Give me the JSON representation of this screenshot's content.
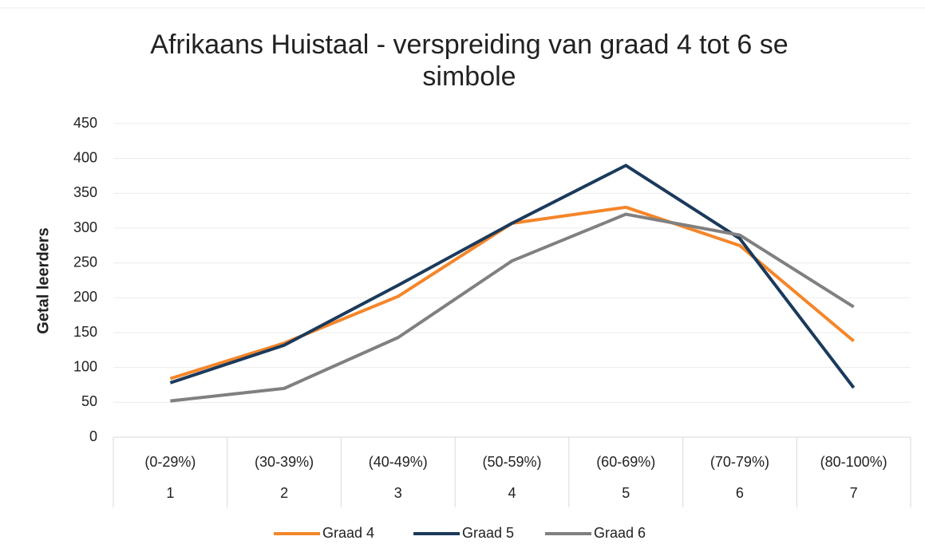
{
  "chart_data": {
    "type": "line",
    "title": "Afrikaans Huistaal - verspreiding van graad 4 tot 6 se simbole",
    "y_label": "Getal leerders",
    "categories": [
      [
        "(0-29%)",
        "1"
      ],
      [
        "(30-39%)",
        "2"
      ],
      [
        "(40-49%)",
        "3"
      ],
      [
        "(50-59%)",
        "4"
      ],
      [
        "(60-69%)",
        "5"
      ],
      [
        "(70-79%)",
        "6"
      ],
      [
        "(80-100%)",
        "7"
      ]
    ],
    "series": [
      {
        "name": "Graad 4",
        "color": "#f4862a",
        "values": [
          84,
          135,
          202,
          307,
          330,
          275,
          138
        ]
      },
      {
        "name": "Graad 5",
        "color": "#1b3a5c",
        "values": [
          78,
          132,
          218,
          307,
          390,
          285,
          71
        ]
      },
      {
        "name": "Graad 6",
        "color": "#808080",
        "values": [
          52,
          70,
          143,
          253,
          320,
          290,
          187
        ]
      }
    ],
    "ylim": [
      0,
      450
    ],
    "yticks": [
      0,
      50,
      100,
      150,
      200,
      250,
      300,
      350,
      400,
      450
    ],
    "grid": true,
    "legend": "bottom"
  }
}
